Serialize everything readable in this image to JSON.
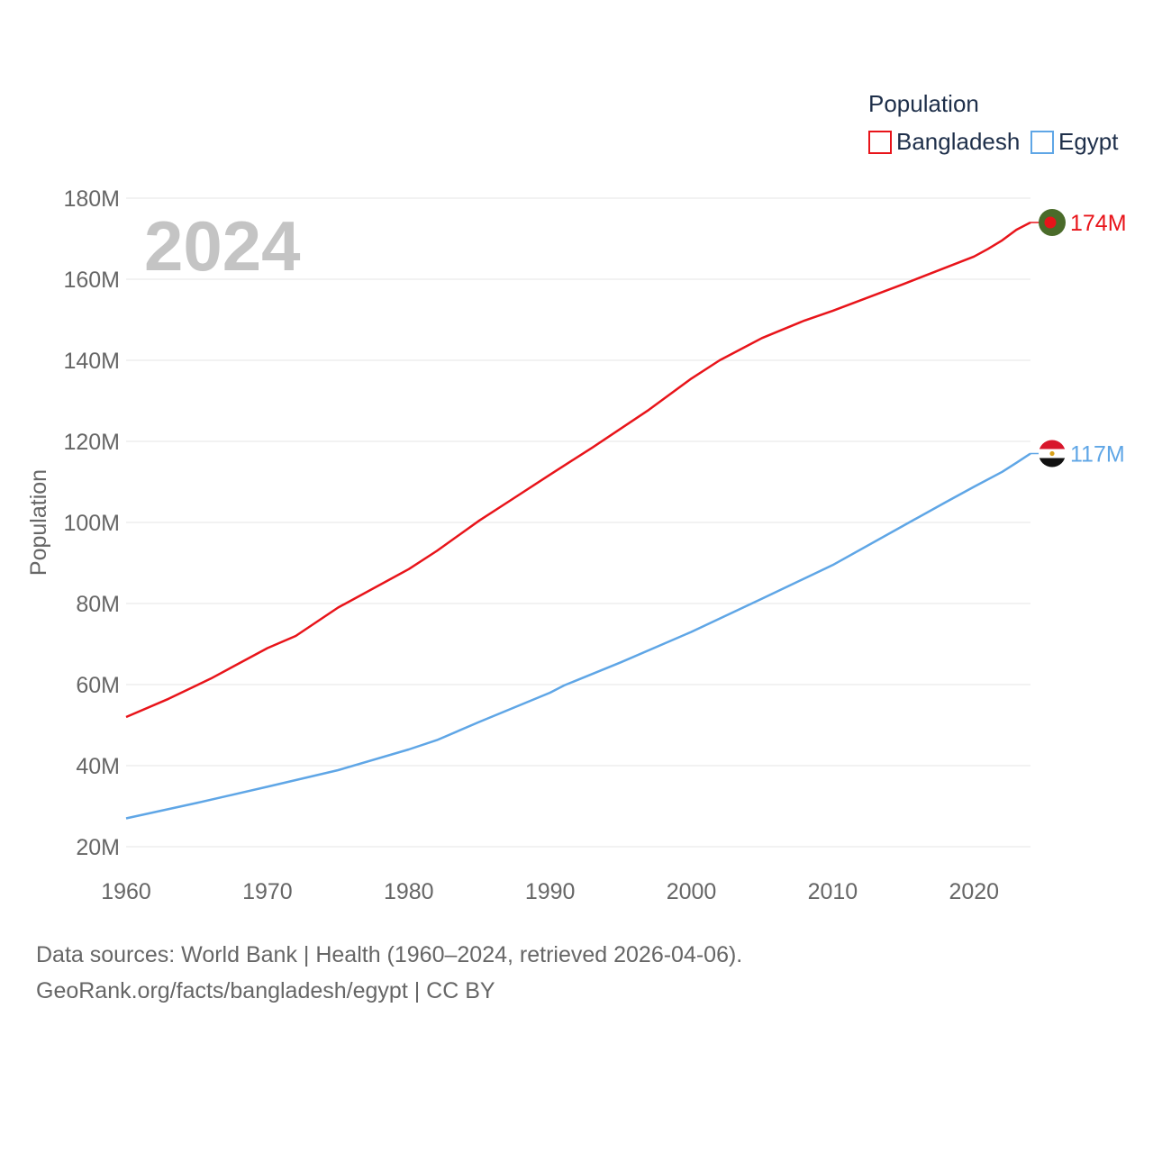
{
  "chart_data": {
    "type": "line",
    "title": "",
    "year_label": "2024",
    "ylabel": "Population",
    "xlabel": "",
    "ylim": [
      20000000,
      180000000
    ],
    "xlim": [
      1960,
      2024
    ],
    "yticks": [
      "20M",
      "40M",
      "60M",
      "80M",
      "100M",
      "120M",
      "140M",
      "160M",
      "180M"
    ],
    "xticks": [
      "1960",
      "1970",
      "1980",
      "1990",
      "2000",
      "2010",
      "2020"
    ],
    "legend": {
      "title": "Population",
      "position": "top-right",
      "items": [
        "Bangladesh",
        "Egypt"
      ]
    },
    "series": [
      {
        "name": "Bangladesh",
        "color": "#e8141a",
        "end_label": "174M",
        "flag": "bangladesh-flag",
        "x": [
          1960,
          1963,
          1966,
          1970,
          1972,
          1975,
          1980,
          1982,
          1985,
          1987,
          1990,
          1993,
          1997,
          2000,
          2002,
          2005,
          2008,
          2010,
          2015,
          2020,
          2021,
          2022,
          2023,
          2024
        ],
        "values": [
          52000000,
          56500000,
          61500000,
          69000000,
          72000000,
          79000000,
          88500000,
          93000000,
          100500000,
          105000000,
          111800000,
          118500000,
          127800000,
          135500000,
          140000000,
          145500000,
          149800000,
          152200000,
          158800000,
          165600000,
          167500000,
          169600000,
          172200000,
          174000000
        ]
      },
      {
        "name": "Egypt",
        "color": "#5fa6e6",
        "end_label": "117M",
        "flag": "egypt-flag",
        "x": [
          1960,
          1965,
          1970,
          1975,
          1980,
          1982,
          1985,
          1990,
          1991,
          1995,
          2000,
          2005,
          2010,
          2015,
          2018,
          2020,
          2022,
          2023,
          2024
        ],
        "values": [
          27000000,
          30800000,
          34800000,
          38900000,
          44000000,
          46300000,
          50800000,
          58000000,
          59800000,
          65500000,
          73000000,
          81200000,
          89500000,
          99200000,
          105000000,
          108800000,
          112500000,
          114700000,
          117000000
        ]
      }
    ]
  },
  "footer": {
    "line1": "Data sources: World Bank | Health (1960–2024, retrieved 2026-04-06).",
    "line2": "GeoRank.org/facts/bangladesh/egypt | CC BY"
  }
}
